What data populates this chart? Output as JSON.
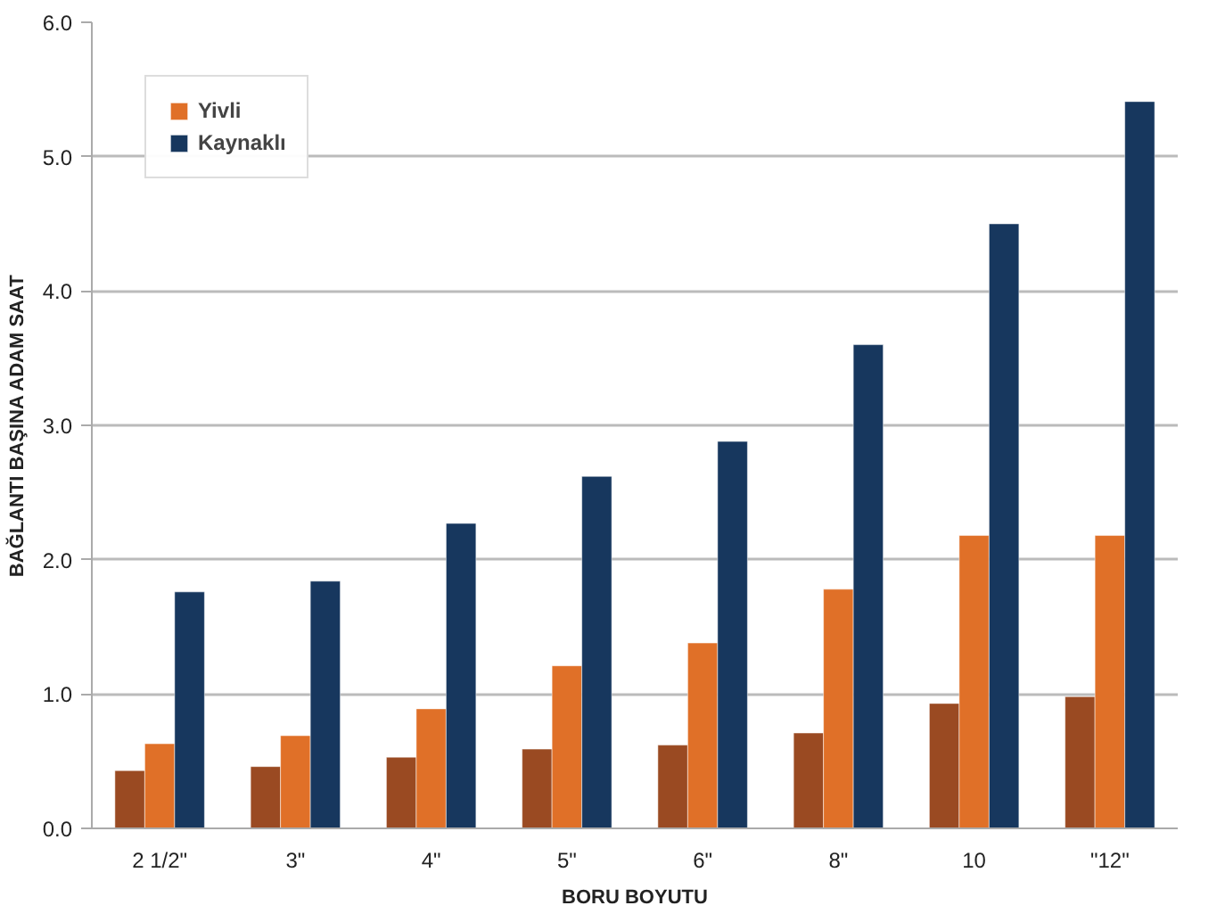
{
  "chart_data": {
    "type": "bar",
    "xlabel": "BORU BOYUTU",
    "ylabel": "BAĞLANTI BAŞINA ADAM SAAT",
    "categories": [
      "2 1/2\"",
      "3\"",
      "4\"",
      "5\"",
      "6\"",
      "8\"",
      "10",
      "\"12\""
    ],
    "series": [
      {
        "color": "#9a4a22",
        "values": [
          0.43,
          0.46,
          0.53,
          0.59,
          0.62,
          0.71,
          0.93,
          0.98
        ]
      },
      {
        "name": "Yivli",
        "color": "#e07028",
        "values": [
          0.63,
          0.69,
          0.89,
          1.21,
          1.38,
          1.78,
          2.18,
          2.18
        ]
      },
      {
        "name": "Kaynaklı",
        "color": "#17375e",
        "values": [
          1.76,
          1.84,
          2.27,
          2.62,
          2.88,
          3.6,
          4.5,
          5.41
        ]
      }
    ],
    "ylim": [
      0,
      6
    ],
    "yticks": [
      {
        "value": 0,
        "label": "0.0"
      },
      {
        "value": 1,
        "label": "1.0"
      },
      {
        "value": 2,
        "label": "2.0"
      },
      {
        "value": 3,
        "label": "3.0"
      },
      {
        "value": 4,
        "label": "4.0"
      },
      {
        "value": 5,
        "label": "5.0"
      },
      {
        "value": 6,
        "label": "6.0"
      }
    ],
    "grid": "y",
    "legend": "top left"
  }
}
